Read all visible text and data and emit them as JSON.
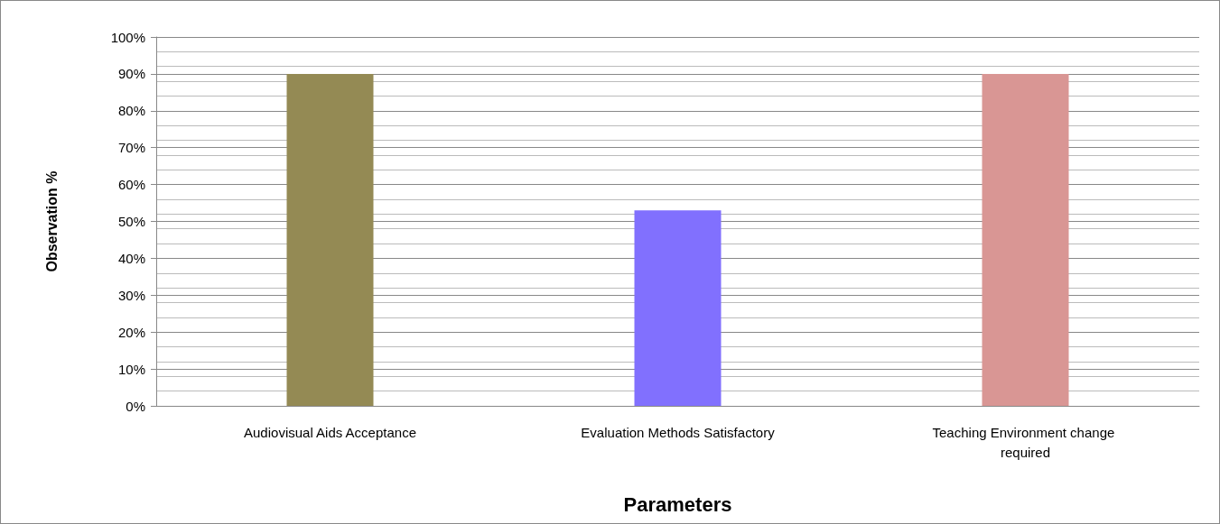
{
  "chart_data": {
    "type": "bar",
    "xlabel": "Parameters",
    "ylabel": "Observation %",
    "categories": [
      "Audiovisual Aids Acceptance",
      "Evaluation Methods Satisfactory",
      "Teaching Environment change required"
    ],
    "values": [
      90,
      53,
      90
    ],
    "colors": [
      "#948a54",
      "#8170fe",
      "#d99694"
    ],
    "ylim": [
      0,
      100
    ],
    "yticks": [
      {
        "value": 0,
        "label": "0%"
      },
      {
        "value": 10,
        "label": "10%"
      },
      {
        "value": 20,
        "label": "20%"
      },
      {
        "value": 30,
        "label": "30%"
      },
      {
        "value": 40,
        "label": "40%"
      },
      {
        "value": 50,
        "label": "50%"
      },
      {
        "value": 60,
        "label": "60%"
      },
      {
        "value": 70,
        "label": "70%"
      },
      {
        "value": 80,
        "label": "80%"
      },
      {
        "value": 90,
        "label": "90%"
      },
      {
        "value": 100,
        "label": "100%"
      }
    ],
    "grid": true
  }
}
